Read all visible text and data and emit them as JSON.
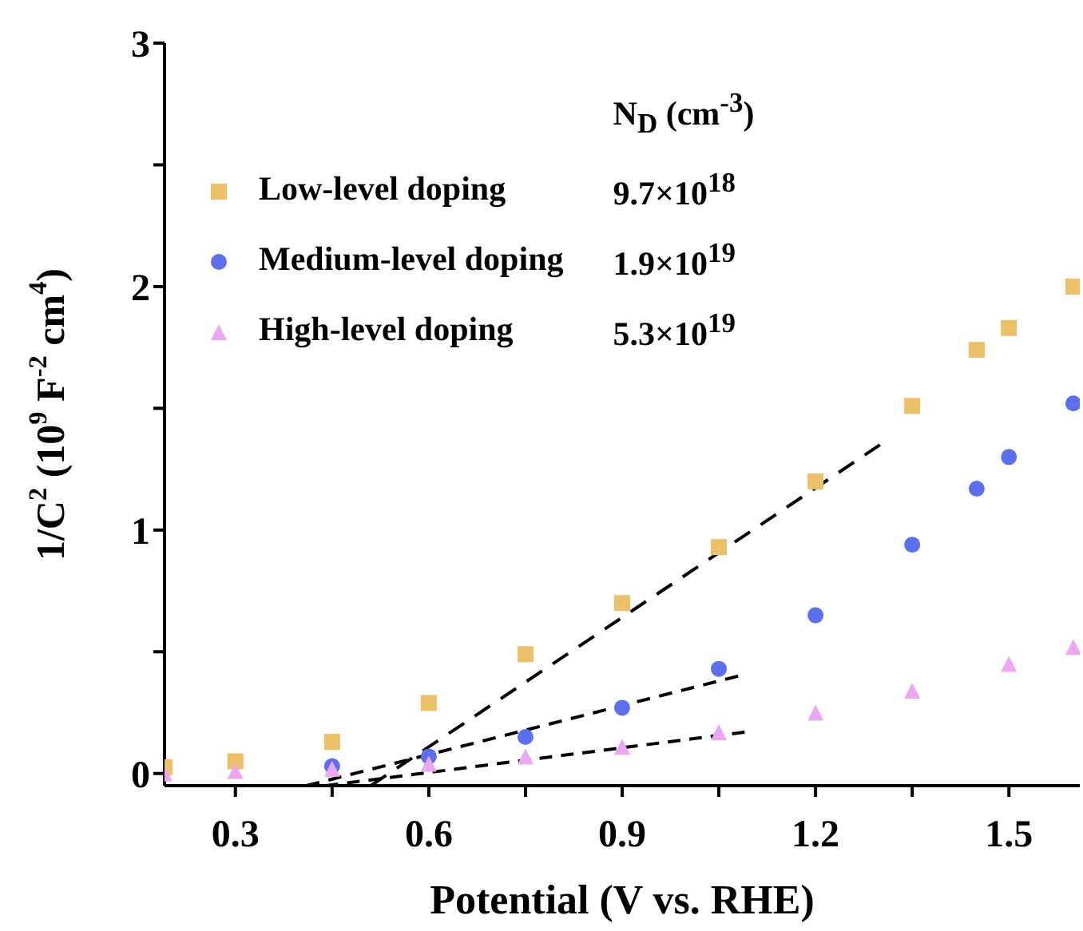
{
  "chart_data": {
    "type": "scatter",
    "xlabel": "Potential (V vs. RHE)",
    "ylabel": "1/C$^{2}$ (10$^{9}$ F$^{-2}$ cm$^{4}$)",
    "legend_title": "N$_{D}$ (cm$^{-3}$)",
    "annotations": [
      "9.7×10$^{18}$",
      "1.9×10$^{19}$",
      "5.3×10$^{19}$"
    ],
    "xlim": [
      0.19,
      1.61
    ],
    "ylim": [
      -0.05,
      3
    ],
    "xticks": [
      0.3,
      {
        "value": 0.45,
        "label": null
      },
      0.6,
      {
        "value": 0.75,
        "label": null
      },
      0.9,
      {
        "value": 1.05,
        "label": null
      },
      1.2,
      {
        "value": 1.35,
        "label": null
      },
      1.5
    ],
    "yticks": [
      0,
      {
        "value": 0.5,
        "label": null
      },
      1,
      {
        "value": 1.5,
        "label": null
      },
      2,
      {
        "value": 2.5,
        "label": null
      },
      3
    ],
    "grid": false,
    "legend": "top left",
    "series": [
      {
        "name": "Low-level doping",
        "color": "#ebc067",
        "marker": "square",
        "x": [
          0.19,
          0.3,
          0.45,
          0.6,
          0.75,
          0.9,
          1.05,
          1.2,
          1.35,
          1.45,
          1.5,
          1.6
        ],
        "values": [
          0.026,
          0.05,
          0.13,
          0.29,
          0.49,
          0.7,
          0.93,
          1.2,
          1.51,
          1.74,
          1.83,
          2.0
        ]
      },
      {
        "name": "Medium-level doping",
        "color": "#5b6ff0",
        "marker": "circle",
        "x": [
          0.45,
          0.6,
          0.75,
          0.9,
          1.05,
          1.2,
          1.35,
          1.45,
          1.5,
          1.6
        ],
        "values": [
          0.03,
          0.07,
          0.15,
          0.27,
          0.43,
          0.65,
          0.94,
          1.17,
          1.3,
          1.52
        ]
      },
      {
        "name": "High-level doping",
        "color": "#eba7f2",
        "marker": "triangle",
        "x": [
          0.19,
          0.3,
          0.45,
          0.6,
          0.75,
          0.9,
          1.05,
          1.2,
          1.35,
          1.5,
          1.6
        ],
        "values": [
          0.0,
          0.01,
          0.02,
          0.04,
          0.07,
          0.11,
          0.17,
          0.25,
          0.34,
          0.45,
          0.52
        ]
      },
      {
        "type": "line",
        "color": "#000000",
        "line_style": "dashed",
        "x": [
          0.51,
          1.3
        ],
        "values": [
          -0.05,
          1.35
        ]
      },
      {
        "type": "line",
        "color": "#000000",
        "line_style": "dashed",
        "x": [
          0.41,
          1.08
        ],
        "values": [
          -0.05,
          0.4
        ]
      },
      {
        "type": "line",
        "color": "#000000",
        "line_style": "dashed",
        "x": [
          0.44,
          1.09
        ],
        "values": [
          -0.05,
          0.17
        ]
      }
    ]
  }
}
